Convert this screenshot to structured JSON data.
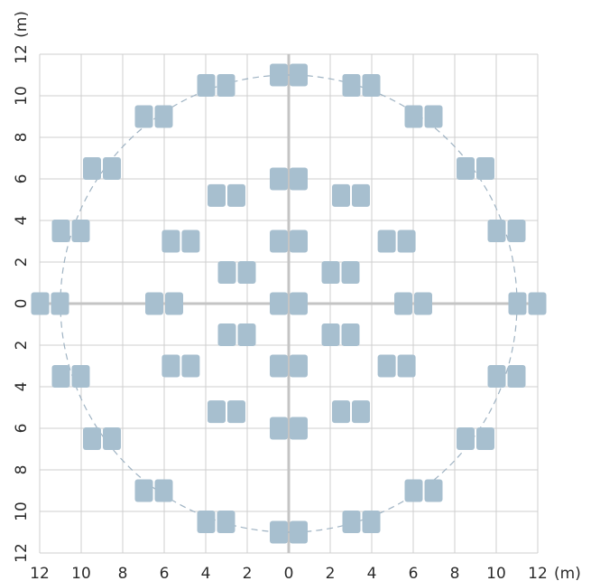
{
  "x_axis": {
    "unit_label": "(m)",
    "tick_labels": [
      "12",
      "10",
      "8",
      "6",
      "4",
      "2",
      "0",
      "2",
      "4",
      "6",
      "8",
      "10",
      "12"
    ]
  },
  "y_axis": {
    "unit_label": "(m)",
    "tick_labels": [
      "12",
      "10",
      "8",
      "6",
      "4",
      "2",
      "0",
      "2",
      "4",
      "6",
      "8",
      "10",
      "12"
    ]
  },
  "chart_data": {
    "type": "scatter",
    "xlabel": "(m)",
    "ylabel": "(m)",
    "xlim": [
      -12,
      12
    ],
    "ylim": [
      -12,
      12
    ],
    "grid": true,
    "dashed_circle_radius": 11,
    "element": "pair of speaker modules",
    "pad_color": "#a7bfcf",
    "points": [
      {
        "x": 0,
        "y": 11
      },
      {
        "x": -3.5,
        "y": 10.5
      },
      {
        "x": 3.5,
        "y": 10.5
      },
      {
        "x": -6.5,
        "y": 9
      },
      {
        "x": 6.5,
        "y": 9
      },
      {
        "x": -9,
        "y": 6.5
      },
      {
        "x": 9,
        "y": 6.5
      },
      {
        "x": -10.5,
        "y": 3.5
      },
      {
        "x": 10.5,
        "y": 3.5
      },
      {
        "x": -11.5,
        "y": 0
      },
      {
        "x": 11.5,
        "y": 0
      },
      {
        "x": -10.5,
        "y": -3.5
      },
      {
        "x": 10.5,
        "y": -3.5
      },
      {
        "x": -9,
        "y": -6.5
      },
      {
        "x": 9,
        "y": -6.5
      },
      {
        "x": -6.5,
        "y": -9
      },
      {
        "x": 6.5,
        "y": -9
      },
      {
        "x": -3.5,
        "y": -10.5
      },
      {
        "x": 3.5,
        "y": -10.5
      },
      {
        "x": 0,
        "y": -11
      },
      {
        "x": 0,
        "y": 6
      },
      {
        "x": -3,
        "y": 5.2
      },
      {
        "x": 3,
        "y": 5.2
      },
      {
        "x": -5.2,
        "y": 3
      },
      {
        "x": 5.2,
        "y": 3
      },
      {
        "x": -6,
        "y": 0
      },
      {
        "x": 6,
        "y": 0
      },
      {
        "x": -5.2,
        "y": -3
      },
      {
        "x": 5.2,
        "y": -3
      },
      {
        "x": -3,
        "y": -5.2
      },
      {
        "x": 3,
        "y": -5.2
      },
      {
        "x": 0,
        "y": -6
      },
      {
        "x": 0,
        "y": 3
      },
      {
        "x": -2.5,
        "y": 1.5
      },
      {
        "x": 2.5,
        "y": 1.5
      },
      {
        "x": -2.5,
        "y": -1.5
      },
      {
        "x": 2.5,
        "y": -1.5
      },
      {
        "x": 0,
        "y": -3
      },
      {
        "x": 0,
        "y": 0
      }
    ]
  }
}
